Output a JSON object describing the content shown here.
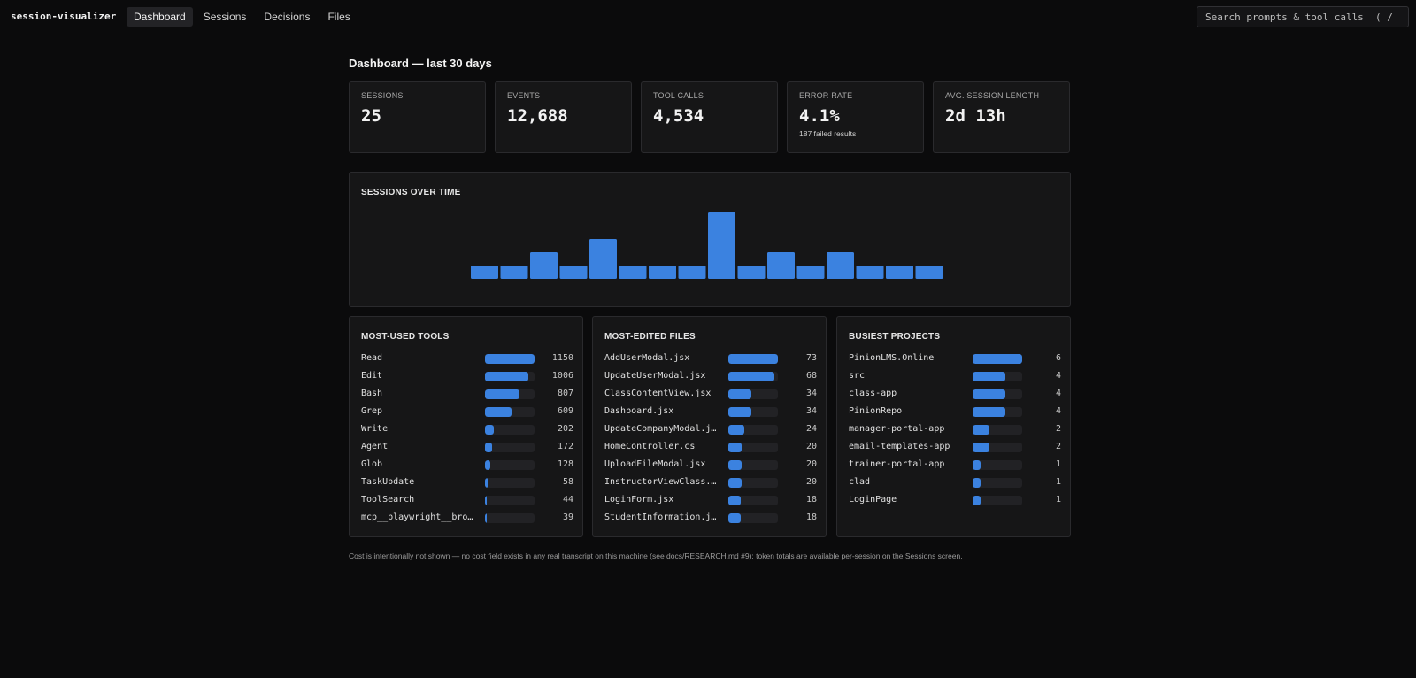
{
  "app": {
    "title": "session-visualizer"
  },
  "nav": [
    {
      "label": "Dashboard",
      "active": true
    },
    {
      "label": "Sessions",
      "active": false
    },
    {
      "label": "Decisions",
      "active": false
    },
    {
      "label": "Files",
      "active": false
    }
  ],
  "search": {
    "placeholder": "Search prompts & tool calls  ( / )"
  },
  "page": {
    "title": "Dashboard — last 30 days"
  },
  "stats": [
    {
      "label": "SESSIONS",
      "value": "25",
      "sub": ""
    },
    {
      "label": "EVENTS",
      "value": "12,688",
      "sub": ""
    },
    {
      "label": "TOOL CALLS",
      "value": "4,534",
      "sub": ""
    },
    {
      "label": "ERROR RATE",
      "value": "4.1%",
      "sub": "187 failed results"
    },
    {
      "label": "AVG. SESSION LENGTH",
      "value": "2d 13h",
      "sub": ""
    }
  ],
  "sessions_chart": {
    "title": "SESSIONS OVER TIME",
    "bar_color": "#3b82e0"
  },
  "chart_data": {
    "type": "bar",
    "title": "SESSIONS OVER TIME",
    "values": [
      1,
      1,
      2,
      1,
      3,
      1,
      1,
      1,
      5,
      1,
      2,
      1,
      2,
      1,
      1,
      1
    ],
    "ylim": [
      0,
      5
    ],
    "grid": false,
    "legend": "none"
  },
  "panels": [
    {
      "title": "MOST-USED TOOLS",
      "max": 1150,
      "rows": [
        {
          "label": "Read",
          "count": "1150",
          "value": 1150
        },
        {
          "label": "Edit",
          "count": "1006",
          "value": 1006
        },
        {
          "label": "Bash",
          "count": "807",
          "value": 807
        },
        {
          "label": "Grep",
          "count": "609",
          "value": 609
        },
        {
          "label": "Write",
          "count": "202",
          "value": 202
        },
        {
          "label": "Agent",
          "count": "172",
          "value": 172
        },
        {
          "label": "Glob",
          "count": "128",
          "value": 128
        },
        {
          "label": "TaskUpdate",
          "count": "58",
          "value": 58
        },
        {
          "label": "ToolSearch",
          "count": "44",
          "value": 44
        },
        {
          "label": "mcp__playwright__brow…",
          "count": "39",
          "value": 39
        }
      ]
    },
    {
      "title": "MOST-EDITED FILES",
      "max": 73,
      "rows": [
        {
          "label": "AddUserModal.jsx",
          "count": "73",
          "value": 73
        },
        {
          "label": "UpdateUserModal.jsx",
          "count": "68",
          "value": 68
        },
        {
          "label": "ClassContentView.jsx",
          "count": "34",
          "value": 34
        },
        {
          "label": "Dashboard.jsx",
          "count": "34",
          "value": 34
        },
        {
          "label": "UpdateCompanyModal.jsx",
          "count": "24",
          "value": 24
        },
        {
          "label": "HomeController.cs",
          "count": "20",
          "value": 20
        },
        {
          "label": "UploadFileModal.jsx",
          "count": "20",
          "value": 20
        },
        {
          "label": "InstructorViewClass.j…",
          "count": "20",
          "value": 20
        },
        {
          "label": "LoginForm.jsx",
          "count": "18",
          "value": 18
        },
        {
          "label": "StudentInformation.jsx",
          "count": "18",
          "value": 18
        }
      ]
    },
    {
      "title": "BUSIEST PROJECTS",
      "max": 6,
      "rows": [
        {
          "label": "PinionLMS.Online",
          "count": "6",
          "value": 6
        },
        {
          "label": "src",
          "count": "4",
          "value": 4
        },
        {
          "label": "class-app",
          "count": "4",
          "value": 4
        },
        {
          "label": "PinionRepo",
          "count": "4",
          "value": 4
        },
        {
          "label": "manager-portal-app",
          "count": "2",
          "value": 2
        },
        {
          "label": "email-templates-app",
          "count": "2",
          "value": 2
        },
        {
          "label": "trainer-portal-app",
          "count": "1",
          "value": 1
        },
        {
          "label": "clad",
          "count": "1",
          "value": 1
        },
        {
          "label": "LoginPage",
          "count": "1",
          "value": 1
        }
      ]
    }
  ],
  "footnote": "Cost is intentionally not shown — no cost field exists in any real transcript on this machine (see docs/RESEARCH.md #9); token totals are available per-session on the Sessions screen."
}
